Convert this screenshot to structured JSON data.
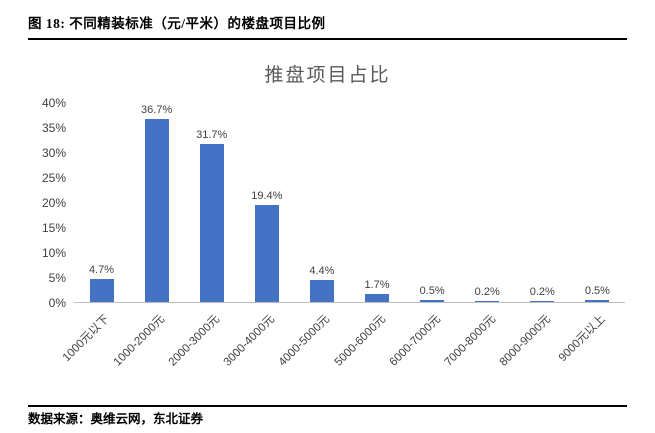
{
  "figure": {
    "header": "图 18:  不同精装标准（元/平米）的楼盘项目比例",
    "source": "数据来源：奥维云网，东北证券"
  },
  "chart_data": {
    "type": "bar",
    "title": "推盘项目占比",
    "categories": [
      "1000元以下",
      "1000-2000元",
      "2000-3000元",
      "3000-4000元",
      "4000-5000元",
      "5000-6000元",
      "6000-7000元",
      "7000-8000元",
      "8000-9000元",
      "9000元以上"
    ],
    "values": [
      4.7,
      36.7,
      31.7,
      19.4,
      4.4,
      1.7,
      0.5,
      0.2,
      0.2,
      0.5
    ],
    "value_labels": [
      "4.7%",
      "36.7%",
      "31.7%",
      "19.4%",
      "4.4%",
      "1.7%",
      "0.5%",
      "0.2%",
      "0.2%",
      "0.5%"
    ],
    "xlabel": "",
    "ylabel": "",
    "ylim": [
      0,
      40
    ],
    "y_ticks": [
      "0%",
      "5%",
      "10%",
      "15%",
      "20%",
      "25%",
      "30%",
      "35%",
      "40%"
    ],
    "bar_color": "#4472C4",
    "grid": false,
    "legend": false
  }
}
